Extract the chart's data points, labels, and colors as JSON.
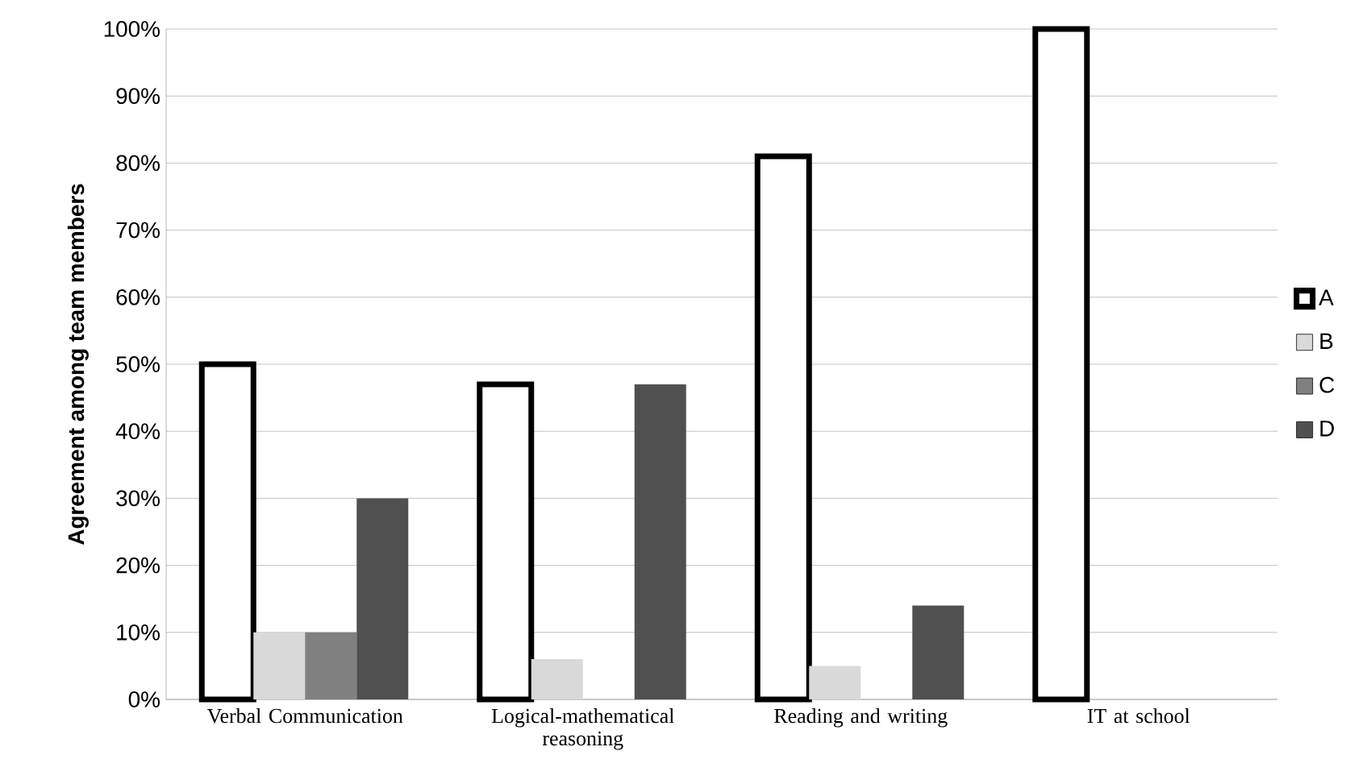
{
  "chart_data": {
    "type": "bar",
    "ylabel": "Agreement among team members",
    "categories": [
      "Verbal Communication",
      "Logical-mathematical reasoning",
      "Reading and writing",
      "IT at school"
    ],
    "series": [
      {
        "name": "A",
        "color": "#ffffff",
        "values": [
          50,
          47,
          81,
          100
        ]
      },
      {
        "name": "B",
        "color": "#d9d9d9",
        "values": [
          10,
          6,
          5,
          0
        ]
      },
      {
        "name": "C",
        "color": "#808080",
        "values": [
          10,
          0,
          0,
          0
        ]
      },
      {
        "name": "D",
        "color": "#505050",
        "values": [
          30,
          47,
          14,
          0
        ]
      }
    ],
    "ylim": [
      0,
      100
    ],
    "yticks": [
      {
        "value": 0,
        "label": "0%"
      },
      {
        "value": 10,
        "label": "10%"
      },
      {
        "value": 20,
        "label": "20%"
      },
      {
        "value": 30,
        "label": "30%"
      },
      {
        "value": 40,
        "label": "40%"
      },
      {
        "value": 50,
        "label": "50%"
      },
      {
        "value": 60,
        "label": "60%"
      },
      {
        "value": 70,
        "label": "70%"
      },
      {
        "value": 80,
        "label": "80%"
      },
      {
        "value": 90,
        "label": "90%"
      },
      {
        "value": 100,
        "label": "100%"
      }
    ],
    "grid": "y",
    "legend": "right"
  }
}
